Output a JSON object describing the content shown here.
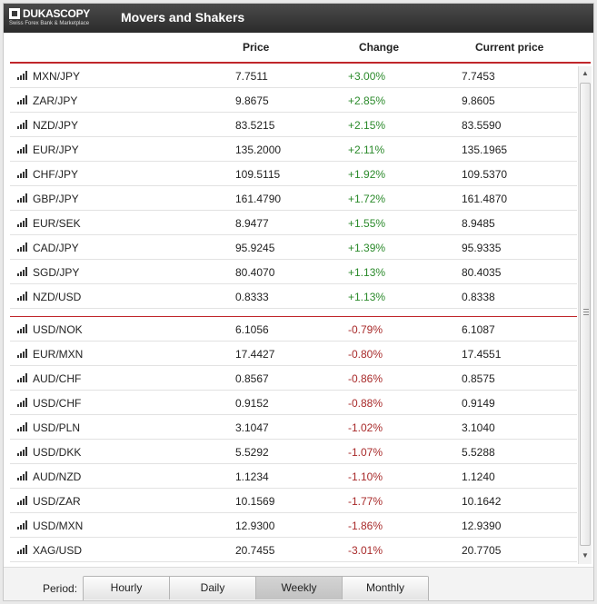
{
  "header": {
    "logo_text": "DUKASCOPY",
    "logo_tagline": "Swiss Forex Bank & Marketplace",
    "title": "Movers and Shakers"
  },
  "columns": {
    "price": "Price",
    "change": "Change",
    "current": "Current price"
  },
  "gainers": [
    {
      "symbol": "MXN/JPY",
      "price": "7.7511",
      "change": "+3.00%",
      "current": "7.7453"
    },
    {
      "symbol": "ZAR/JPY",
      "price": "9.8675",
      "change": "+2.85%",
      "current": "9.8605"
    },
    {
      "symbol": "NZD/JPY",
      "price": "83.5215",
      "change": "+2.15%",
      "current": "83.5590"
    },
    {
      "symbol": "EUR/JPY",
      "price": "135.2000",
      "change": "+2.11%",
      "current": "135.1965"
    },
    {
      "symbol": "CHF/JPY",
      "price": "109.5115",
      "change": "+1.92%",
      "current": "109.5370"
    },
    {
      "symbol": "GBP/JPY",
      "price": "161.4790",
      "change": "+1.72%",
      "current": "161.4870"
    },
    {
      "symbol": "EUR/SEK",
      "price": "8.9477",
      "change": "+1.55%",
      "current": "8.9485"
    },
    {
      "symbol": "CAD/JPY",
      "price": "95.9245",
      "change": "+1.39%",
      "current": "95.9335"
    },
    {
      "symbol": "SGD/JPY",
      "price": "80.4070",
      "change": "+1.13%",
      "current": "80.4035"
    },
    {
      "symbol": "NZD/USD",
      "price": "0.8333",
      "change": "+1.13%",
      "current": "0.8338"
    }
  ],
  "losers": [
    {
      "symbol": "USD/NOK",
      "price": "6.1056",
      "change": "-0.79%",
      "current": "6.1087"
    },
    {
      "symbol": "EUR/MXN",
      "price": "17.4427",
      "change": "-0.80%",
      "current": "17.4551"
    },
    {
      "symbol": "AUD/CHF",
      "price": "0.8567",
      "change": "-0.86%",
      "current": "0.8575"
    },
    {
      "symbol": "USD/CHF",
      "price": "0.9152",
      "change": "-0.88%",
      "current": "0.9149"
    },
    {
      "symbol": "USD/PLN",
      "price": "3.1047",
      "change": "-1.02%",
      "current": "3.1040"
    },
    {
      "symbol": "USD/DKK",
      "price": "5.5292",
      "change": "-1.07%",
      "current": "5.5288"
    },
    {
      "symbol": "AUD/NZD",
      "price": "1.1234",
      "change": "-1.10%",
      "current": "1.1240"
    },
    {
      "symbol": "USD/ZAR",
      "price": "10.1569",
      "change": "-1.77%",
      "current": "10.1642"
    },
    {
      "symbol": "USD/MXN",
      "price": "12.9300",
      "change": "-1.86%",
      "current": "12.9390"
    },
    {
      "symbol": "XAG/USD",
      "price": "20.7455",
      "change": "-3.01%",
      "current": "20.7705"
    }
  ],
  "footer": {
    "period_label": "Period:",
    "options": [
      {
        "label": "Hourly",
        "active": false
      },
      {
        "label": "Daily",
        "active": false
      },
      {
        "label": "Weekly",
        "active": true
      },
      {
        "label": "Monthly",
        "active": false
      }
    ]
  },
  "icons": {
    "row_icon": "bar-chart-icon",
    "scroll_up": "arrow-up-icon",
    "scroll_down": "arrow-down-icon"
  },
  "colors": {
    "positive": "#2b8a2b",
    "negative": "#a82a2a",
    "accent": "#c0262b"
  }
}
